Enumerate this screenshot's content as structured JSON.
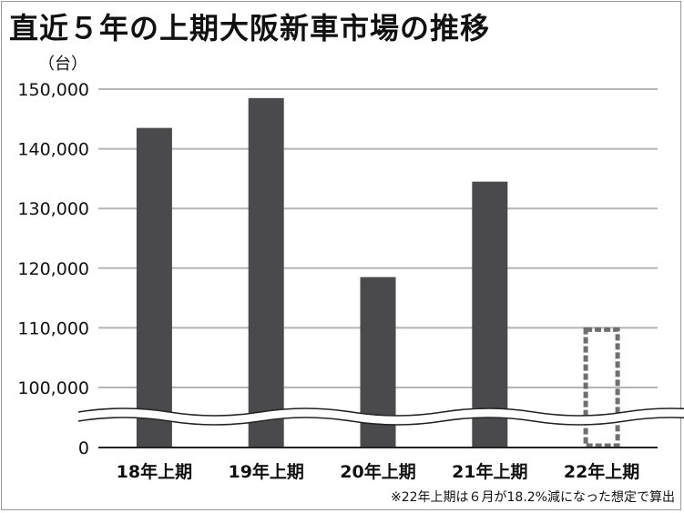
{
  "title": "直近５年の上期大阪新車市場の推移",
  "unit_label": "（台）",
  "footnote": "※22年上期は６月が18.2%減になった想定で算出",
  "colors": {
    "bar": "#4a4a4c",
    "grid": "#b5b5b5",
    "estimate_outline": "#6f6f6f",
    "axis": "#222222"
  },
  "chart_data": {
    "type": "bar",
    "title": "直近５年の上期大阪新車市場の推移",
    "ylabel": "（台）",
    "xlabel": "",
    "categories": [
      "18年上期",
      "19年上期",
      "20年上期",
      "21年上期",
      "22年上期"
    ],
    "values": [
      143500,
      148500,
      118500,
      134500,
      110000
    ],
    "estimated": [
      false,
      false,
      false,
      false,
      true
    ],
    "y_ticks": [
      0,
      100000,
      110000,
      120000,
      130000,
      140000,
      150000
    ],
    "y_tick_labels": [
      "0",
      "100,000",
      "110,000",
      "120,000",
      "130,000",
      "140,000",
      "150,000"
    ],
    "ylim": [
      100000,
      150000
    ],
    "axis_break": true,
    "grid": true,
    "legend": "none"
  }
}
